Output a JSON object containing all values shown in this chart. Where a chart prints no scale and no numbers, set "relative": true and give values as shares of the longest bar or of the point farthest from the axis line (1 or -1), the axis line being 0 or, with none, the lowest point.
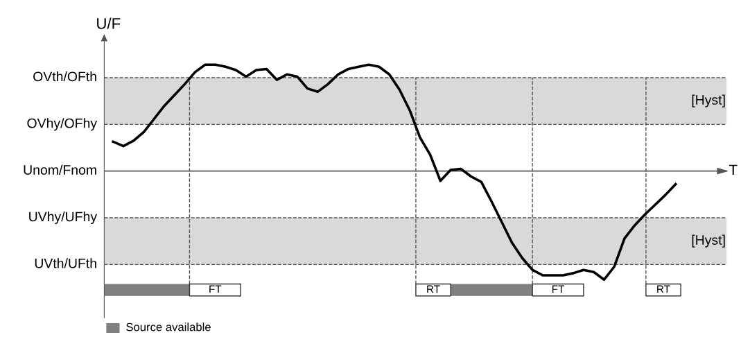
{
  "chart_data": {
    "type": "line",
    "relative": true,
    "ylabel": "U/F",
    "xlabel": "T",
    "categories": [
      null,
      null,
      null,
      null,
      null,
      null,
      null,
      null,
      null,
      null,
      null,
      null,
      null,
      null,
      null,
      null,
      null,
      null,
      null,
      null,
      null,
      null,
      null,
      null,
      null,
      null,
      null,
      null,
      null,
      null,
      null,
      null,
      null,
      null,
      null,
      null,
      null,
      null,
      null,
      null,
      null,
      null,
      null,
      null,
      null,
      null,
      null,
      null,
      null,
      null,
      null,
      null,
      null,
      null,
      null,
      null
    ],
    "series": [
      {
        "color": "#000000",
        "values": [
          0.27,
          0.23,
          0.28,
          0.36,
          0.48,
          0.6,
          0.7,
          0.8,
          0.91,
          0.98,
          0.98,
          0.96,
          0.93,
          0.87,
          0.93,
          0.94,
          0.84,
          0.89,
          0.87,
          0.76,
          0.73,
          0.8,
          0.89,
          0.94,
          0.96,
          0.98,
          0.96,
          0.89,
          0.75,
          0.56,
          0.31,
          0.15,
          -0.09,
          0.01,
          0.02,
          -0.05,
          -0.1,
          -0.28,
          -0.47,
          -0.66,
          -0.8,
          -0.91,
          -0.96,
          -0.96,
          -0.96,
          -0.94,
          -0.91,
          -0.93,
          -1.0,
          -0.88,
          -0.62,
          -0.5,
          -0.4,
          -0.31,
          -0.22,
          -0.12
        ]
      }
    ],
    "ref_lines": [
      {
        "axis": "y",
        "value": 0.86,
        "label": "OVth/OFth",
        "line_style": "dashed",
        "color": "#555555"
      },
      {
        "axis": "y",
        "value": 0.43,
        "label": "OVhy/OFhy",
        "line_style": "dashed",
        "color": "#555555"
      },
      {
        "axis": "y",
        "value": 0,
        "label": "Unom/Fnom",
        "line_style": "solid",
        "color": "#555555"
      },
      {
        "axis": "y",
        "value": -0.43,
        "label": "UVhy/UFhy",
        "line_style": "dashed",
        "color": "#555555"
      },
      {
        "axis": "y",
        "value": -0.86,
        "label": "UVth/UFth",
        "line_style": "dashed",
        "color": "#555555"
      }
    ],
    "bands": [
      {
        "axis": "y",
        "from": 0.43,
        "to": 0.86,
        "label": "[Hyst]",
        "color": "#d9d9dc"
      },
      {
        "axis": "y",
        "from": -0.86,
        "to": -0.43,
        "label": "[Hyst]",
        "color": "#d9d9dc"
      }
    ],
    "annotations": [
      "FT",
      "RT",
      "FT",
      "RT",
      "Source available"
    ],
    "line_style": "solid",
    "marker": "none"
  }
}
